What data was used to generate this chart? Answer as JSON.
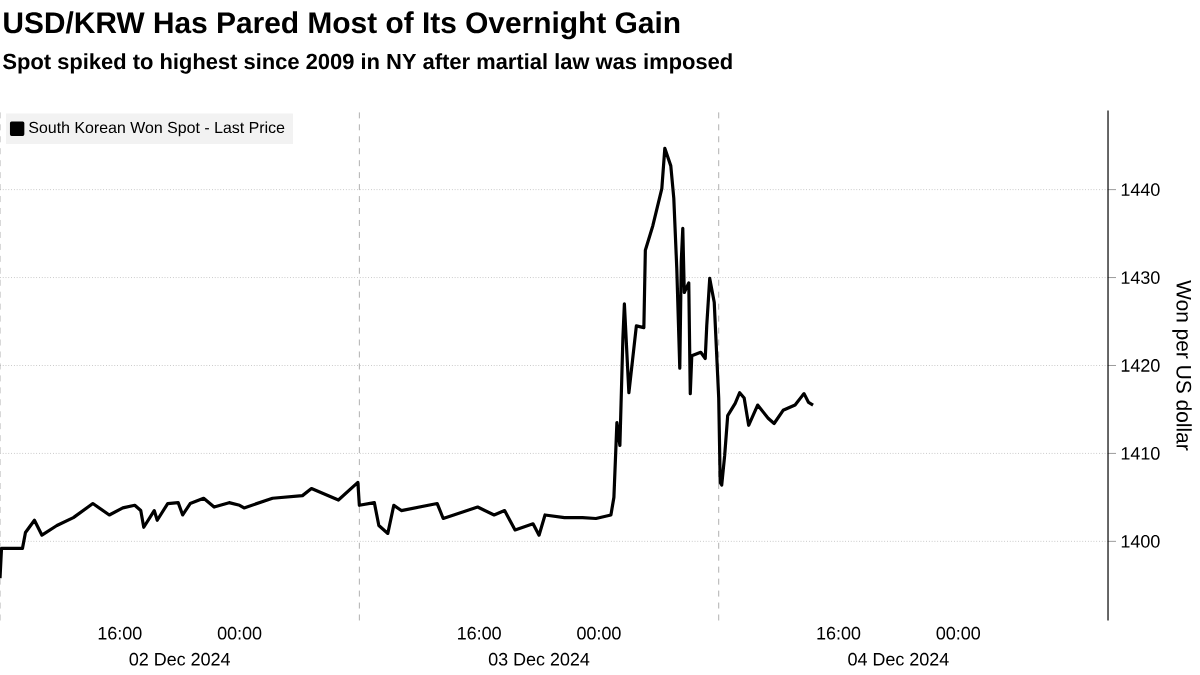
{
  "chart_data": {
    "type": "line",
    "title": "USD/KRW Has Pared Most of Its Overnight Gain",
    "subtitle": "Spot spiked to highest since 2009 in NY after martial law was imposed",
    "ylabel": "Won per US dollar",
    "series": [
      {
        "name": "South Korean Won Spot - Last Price",
        "color": "#000000",
        "x": [
          "2024-12-02T08:00",
          "2024-12-02T08:06",
          "2024-12-02T09:30",
          "2024-12-02T09:42",
          "2024-12-02T10:18",
          "2024-12-02T10:48",
          "2024-12-02T11:48",
          "2024-12-02T12:54",
          "2024-12-02T14:12",
          "2024-12-02T15:18",
          "2024-12-02T16:12",
          "2024-12-02T17:00",
          "2024-12-02T17:24",
          "2024-12-02T17:36",
          "2024-12-02T18:18",
          "2024-12-02T18:30",
          "2024-12-02T19:12",
          "2024-12-02T19:54",
          "2024-12-02T20:12",
          "2024-12-02T20:42",
          "2024-12-02T21:36",
          "2024-12-02T22:18",
          "2024-12-02T23:18",
          "2024-12-03T00:00",
          "2024-12-03T00:18",
          "2024-12-03T02:12",
          "2024-12-03T04:12",
          "2024-12-03T04:48",
          "2024-12-03T06:36",
          "2024-12-03T07:54",
          "2024-12-03T08:00",
          "2024-12-03T09:00",
          "2024-12-03T09:18",
          "2024-12-03T09:54",
          "2024-12-03T10:18",
          "2024-12-03T10:48",
          "2024-12-03T13:12",
          "2024-12-03T13:36",
          "2024-12-03T15:54",
          "2024-12-03T17:00",
          "2024-12-03T17:42",
          "2024-12-03T18:24",
          "2024-12-03T19:36",
          "2024-12-03T20:00",
          "2024-12-03T20:24",
          "2024-12-03T21:42",
          "2024-12-03T22:54",
          "2024-12-03T23:48",
          "2024-12-04T00:48",
          "2024-12-04T01:00",
          "2024-12-04T01:12",
          "2024-12-04T01:24",
          "2024-12-04T01:36",
          "2024-12-04T01:42",
          "2024-12-04T02:00",
          "2024-12-04T02:30",
          "2024-12-04T03:00",
          "2024-12-04T03:06",
          "2024-12-04T03:36",
          "2024-12-04T04:12",
          "2024-12-04T04:24",
          "2024-12-04T04:48",
          "2024-12-04T05:00",
          "2024-12-04T05:12",
          "2024-12-04T05:24",
          "2024-12-04T05:30",
          "2024-12-04T05:36",
          "2024-12-04T05:42",
          "2024-12-04T06:00",
          "2024-12-04T06:06",
          "2024-12-04T06:12",
          "2024-12-04T06:48",
          "2024-12-04T07:06",
          "2024-12-04T07:12",
          "2024-12-04T07:24",
          "2024-12-04T07:42",
          "2024-12-04T08:00",
          "2024-12-04T08:06",
          "2024-12-04T08:12",
          "2024-12-04T08:24",
          "2024-12-04T08:36",
          "2024-12-04T09:06",
          "2024-12-04T09:24",
          "2024-12-04T09:42",
          "2024-12-04T10:00",
          "2024-12-04T10:36",
          "2024-12-04T11:18",
          "2024-12-04T11:42",
          "2024-12-04T12:18",
          "2024-12-04T13:06",
          "2024-12-04T13:36",
          "2024-12-04T13:42",
          "2024-12-04T14:00",
          "2024-12-04T14:18"
        ],
        "values": [
          1395.8,
          1399.2,
          1399.2,
          1401.0,
          1402.4,
          1400.7,
          1401.8,
          1402.7,
          1404.3,
          1403.0,
          1403.8,
          1404.1,
          1403.5,
          1401.6,
          1403.5,
          1402.4,
          1404.3,
          1404.4,
          1403.0,
          1404.3,
          1404.9,
          1403.9,
          1404.4,
          1404.1,
          1403.8,
          1404.9,
          1405.2,
          1406.0,
          1404.7,
          1406.7,
          1404.1,
          1404.4,
          1401.8,
          1400.9,
          1404.1,
          1403.5,
          1404.3,
          1402.6,
          1403.9,
          1403.0,
          1403.5,
          1401.3,
          1402.0,
          1400.7,
          1403.0,
          1402.7,
          1402.7,
          1402.6,
          1403.0,
          1405.0,
          1413.5,
          1410.9,
          1423.1,
          1427.0,
          1416.9,
          1424.5,
          1424.3,
          1433.1,
          1435.9,
          1440.1,
          1444.7,
          1442.7,
          1439.0,
          1431.0,
          1419.7,
          1431.9,
          1435.6,
          1428.3,
          1429.4,
          1416.8,
          1421.1,
          1421.5,
          1420.8,
          1424.5,
          1429.9,
          1427.2,
          1416.3,
          1406.7,
          1406.4,
          1409.8,
          1414.3,
          1415.7,
          1416.9,
          1416.3,
          1413.2,
          1415.5,
          1414.0,
          1413.4,
          1414.9,
          1415.5,
          1416.6,
          1416.8,
          1415.8,
          1415.5
        ]
      }
    ],
    "xlim": [
      "2024-12-02T08:00",
      "2024-12-05T10:00"
    ],
    "xticks": [
      {
        "value": "2024-12-02T16:00",
        "label": "16:00"
      },
      {
        "value": "2024-12-03T00:00",
        "label": "00:00"
      },
      {
        "value": "2024-12-03T16:00",
        "label": "16:00"
      },
      {
        "value": "2024-12-04T00:00",
        "label": "00:00"
      },
      {
        "value": "2024-12-04T16:00",
        "label": "16:00"
      },
      {
        "value": "2024-12-05T00:00",
        "label": "00:00"
      }
    ],
    "annotations": [
      "02 Dec 2024",
      "03 Dec 2024",
      "04 Dec 2024"
    ],
    "ylim": [
      1391,
      1449
    ],
    "yticks": [
      1400,
      1410,
      1420,
      1430,
      1440
    ],
    "ref_lines": [
      {
        "axis": "x",
        "value": "2024-12-02T08:00",
        "color": "#b0b0b0",
        "line_style": "dashed"
      },
      {
        "axis": "x",
        "value": "2024-12-03T08:00",
        "color": "#b0b0b0",
        "line_style": "dashed"
      },
      {
        "axis": "x",
        "value": "2024-12-04T08:00",
        "color": "#b0b0b0",
        "line_style": "dashed"
      }
    ],
    "grid": true,
    "legend": "top left",
    "marker": "none",
    "line_style": "solid"
  }
}
